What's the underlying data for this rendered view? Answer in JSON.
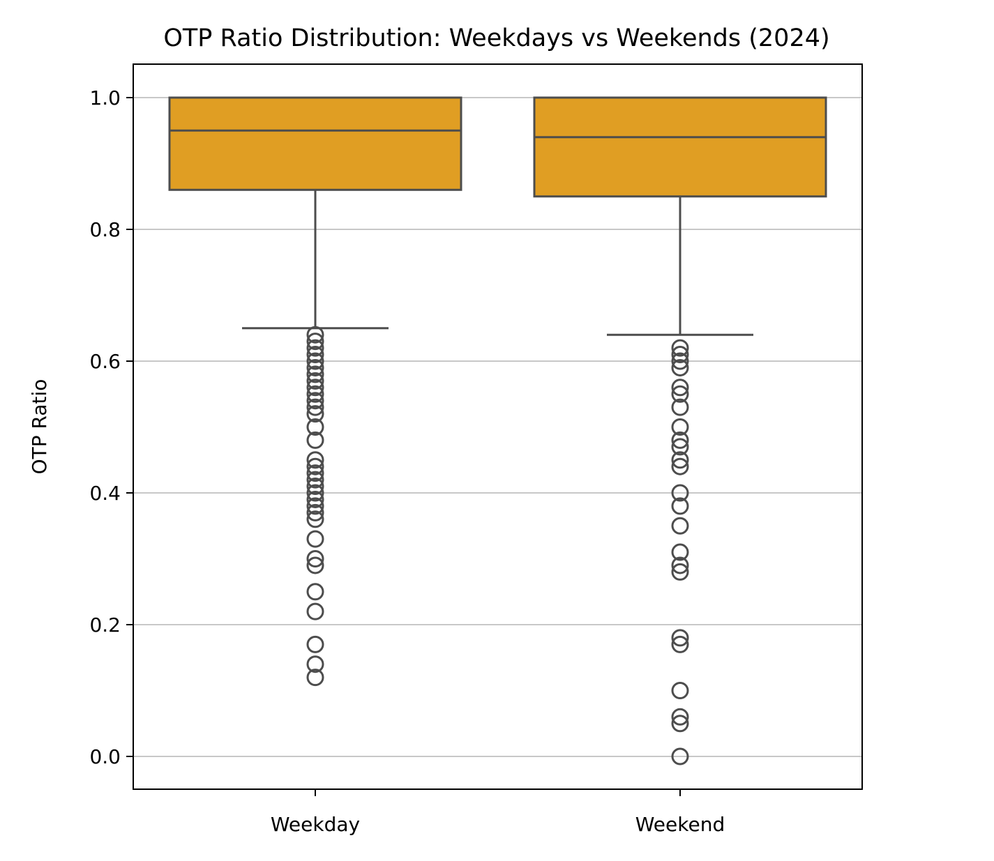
{
  "chart_data": {
    "type": "box",
    "title": "OTP Ratio Distribution: Weekdays vs Weekends (2024)",
    "xlabel": "",
    "ylabel": "OTP Ratio",
    "ylim": [
      -0.05,
      1.05
    ],
    "yticks": [
      0.0,
      0.2,
      0.4,
      0.6,
      0.8,
      1.0
    ],
    "ytick_labels": [
      "0.0",
      "0.2",
      "0.4",
      "0.6",
      "0.8",
      "1.0"
    ],
    "grid": "y",
    "legend": "none",
    "colors": {
      "box_fill": "#e09e23",
      "line": "#4d4d4d",
      "grid": "#c8c8c8",
      "axis": "#000000"
    },
    "categories": [
      "Weekday",
      "Weekend"
    ],
    "boxes": [
      {
        "category": "Weekday",
        "whisker_low": 0.65,
        "q1": 0.86,
        "median": 0.95,
        "q3": 1.0,
        "whisker_high": 1.0,
        "outliers": [
          0.64,
          0.63,
          0.62,
          0.61,
          0.6,
          0.59,
          0.58,
          0.57,
          0.56,
          0.55,
          0.54,
          0.53,
          0.52,
          0.5,
          0.48,
          0.45,
          0.44,
          0.43,
          0.42,
          0.41,
          0.4,
          0.39,
          0.38,
          0.37,
          0.36,
          0.33,
          0.3,
          0.29,
          0.25,
          0.22,
          0.17,
          0.14,
          0.12
        ]
      },
      {
        "category": "Weekend",
        "whisker_low": 0.64,
        "q1": 0.85,
        "median": 0.94,
        "q3": 1.0,
        "whisker_high": 1.0,
        "outliers": [
          0.62,
          0.61,
          0.6,
          0.59,
          0.56,
          0.55,
          0.53,
          0.5,
          0.48,
          0.47,
          0.45,
          0.44,
          0.4,
          0.38,
          0.35,
          0.31,
          0.29,
          0.28,
          0.18,
          0.17,
          0.1,
          0.06,
          0.05,
          0.0
        ]
      }
    ]
  }
}
